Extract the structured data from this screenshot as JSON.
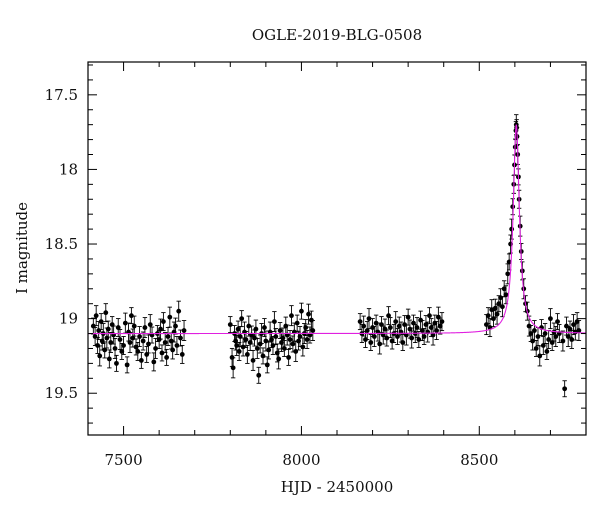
{
  "chart_data": {
    "type": "scatter",
    "title": "OGLE-2019-BLG-0508",
    "xlabel": "HJD - 2450000",
    "ylabel": "I magnitude",
    "xlim": [
      7400,
      8800
    ],
    "ylim": [
      19.78,
      17.28
    ],
    "y_inverted": true,
    "x_ticks": [
      7500,
      8000,
      8500
    ],
    "y_ticks": [
      17.5,
      18,
      18.5,
      19,
      19.5
    ],
    "x_tick_labels": [
      "7500",
      "8000",
      "8500"
    ],
    "y_tick_labels": [
      "17.5",
      "18",
      "18.5",
      "19",
      "19.5"
    ],
    "grid": false,
    "colors": {
      "points": "#000000",
      "model": "#e020e0",
      "axes": "#000000"
    },
    "model": {
      "name": "",
      "baseline_mag": 19.1,
      "peak_time": 8604,
      "peak_mag": 17.7,
      "timescale_days": 10.5
    },
    "series": [
      {
        "name": "",
        "points": [
          [
            7415,
            19.05
          ],
          [
            7420,
            19.12
          ],
          [
            7423,
            18.98
          ],
          [
            7427,
            19.18
          ],
          [
            7430,
            19.08
          ],
          [
            7433,
            19.25
          ],
          [
            7437,
            19.02
          ],
          [
            7440,
            19.15
          ],
          [
            7443,
            19.1
          ],
          [
            7447,
            19.21
          ],
          [
            7450,
            18.96
          ],
          [
            7453,
            19.13
          ],
          [
            7457,
            19.07
          ],
          [
            7460,
            19.27
          ],
          [
            7464,
            19.16
          ],
          [
            7468,
            19.04
          ],
          [
            7472,
            19.11
          ],
          [
            7476,
            19.2
          ],
          [
            7480,
            19.3
          ],
          [
            7485,
            19.06
          ],
          [
            7490,
            19.14
          ],
          [
            7495,
            19.22
          ],
          [
            7500,
            19.18
          ],
          [
            7505,
            19.03
          ],
          [
            7510,
            19.31
          ],
          [
            7514,
            19.09
          ],
          [
            7518,
            19.16
          ],
          [
            7522,
            18.98
          ],
          [
            7526,
            19.13
          ],
          [
            7530,
            19.05
          ],
          [
            7535,
            19.19
          ],
          [
            7540,
            19.22
          ],
          [
            7545,
            19.12
          ],
          [
            7550,
            19.28
          ],
          [
            7555,
            19.15
          ],
          [
            7560,
            19.06
          ],
          [
            7565,
            19.24
          ],
          [
            7570,
            19.17
          ],
          [
            7575,
            19.04
          ],
          [
            7580,
            19.11
          ],
          [
            7585,
            19.29
          ],
          [
            7590,
            19.2
          ],
          [
            7595,
            19.1
          ],
          [
            7600,
            19.14
          ],
          [
            7604,
            19.07
          ],
          [
            7608,
            19.23
          ],
          [
            7612,
            19.02
          ],
          [
            7617,
            19.16
          ],
          [
            7621,
            19.26
          ],
          [
            7625,
            19.12
          ],
          [
            7630,
            18.99
          ],
          [
            7634,
            19.15
          ],
          [
            7638,
            19.21
          ],
          [
            7642,
            19.09
          ],
          [
            7646,
            19.05
          ],
          [
            7650,
            19.18
          ],
          [
            7655,
            18.95
          ],
          [
            7660,
            19.13
          ],
          [
            7665,
            19.24
          ],
          [
            7670,
            19.08
          ],
          [
            7800,
            19.04
          ],
          [
            7805,
            19.26
          ],
          [
            7808,
            19.33
          ],
          [
            7812,
            19.1
          ],
          [
            7815,
            19.15
          ],
          [
            7818,
            19.18
          ],
          [
            7822,
            19.07
          ],
          [
            7825,
            19.22
          ],
          [
            7828,
            19.12
          ],
          [
            7832,
            19.0
          ],
          [
            7836,
            19.19
          ],
          [
            7840,
            19.09
          ],
          [
            7844,
            19.14
          ],
          [
            7848,
            19.24
          ],
          [
            7852,
            19.05
          ],
          [
            7856,
            19.16
          ],
          [
            7860,
            19.11
          ],
          [
            7864,
            19.28
          ],
          [
            7868,
            19.13
          ],
          [
            7872,
            19.07
          ],
          [
            7876,
            19.2
          ],
          [
            7880,
            19.38
          ],
          [
            7884,
            19.17
          ],
          [
            7888,
            19.1
          ],
          [
            7892,
            19.25
          ],
          [
            7896,
            19.06
          ],
          [
            7900,
            19.15
          ],
          [
            7904,
            19.31
          ],
          [
            7908,
            19.21
          ],
          [
            7912,
            19.09
          ],
          [
            7916,
            19.14
          ],
          [
            7920,
            19.18
          ],
          [
            7924,
            19.02
          ],
          [
            7928,
            19.12
          ],
          [
            7932,
            19.23
          ],
          [
            7936,
            19.27
          ],
          [
            7940,
            19.08
          ],
          [
            7944,
            19.16
          ],
          [
            7948,
            19.13
          ],
          [
            7952,
            19.2
          ],
          [
            7956,
            19.05
          ],
          [
            7960,
            19.11
          ],
          [
            7964,
            19.26
          ],
          [
            7968,
            19.14
          ],
          [
            7972,
            18.98
          ],
          [
            7976,
            19.17
          ],
          [
            7980,
            19.09
          ],
          [
            7984,
            19.22
          ],
          [
            7988,
            19.03
          ],
          [
            7992,
            19.15
          ],
          [
            7996,
            19.12
          ],
          [
            8000,
            18.95
          ],
          [
            8004,
            19.19
          ],
          [
            8008,
            19.1
          ],
          [
            8012,
            19.06
          ],
          [
            8016,
            19.14
          ],
          [
            8020,
            18.97
          ],
          [
            8024,
            19.11
          ],
          [
            8028,
            19.01
          ],
          [
            8032,
            19.08
          ],
          [
            8165,
            19.02
          ],
          [
            8170,
            19.1
          ],
          [
            8175,
            19.05
          ],
          [
            8180,
            19.14
          ],
          [
            8185,
            19.08
          ],
          [
            8190,
            19.0
          ],
          [
            8195,
            19.16
          ],
          [
            8200,
            19.06
          ],
          [
            8205,
            19.12
          ],
          [
            8210,
            19.03
          ],
          [
            8215,
            19.09
          ],
          [
            8220,
            19.17
          ],
          [
            8225,
            19.04
          ],
          [
            8230,
            19.11
          ],
          [
            8235,
            19.07
          ],
          [
            8240,
            19.13
          ],
          [
            8245,
            18.98
          ],
          [
            8250,
            19.06
          ],
          [
            8255,
            19.15
          ],
          [
            8260,
            19.1
          ],
          [
            8265,
            19.02
          ],
          [
            8270,
            19.12
          ],
          [
            8275,
            19.05
          ],
          [
            8280,
            19.09
          ],
          [
            8285,
            19.16
          ],
          [
            8290,
            19.04
          ],
          [
            8295,
            19.11
          ],
          [
            8300,
            18.99
          ],
          [
            8305,
            19.07
          ],
          [
            8310,
            19.13
          ],
          [
            8315,
            19.03
          ],
          [
            8320,
            19.1
          ],
          [
            8325,
            19.06
          ],
          [
            8330,
            19.14
          ],
          [
            8335,
            19.01
          ],
          [
            8340,
            19.08
          ],
          [
            8345,
            19.12
          ],
          [
            8350,
            19.04
          ],
          [
            8355,
            19.09
          ],
          [
            8360,
            18.98
          ],
          [
            8365,
            19.06
          ],
          [
            8370,
            19.11
          ],
          [
            8375,
            19.03
          ],
          [
            8380,
            19.08
          ],
          [
            8385,
            18.99
          ],
          [
            8390,
            19.05
          ],
          [
            8395,
            19.02
          ],
          [
            8520,
            19.04
          ],
          [
            8525,
            18.98
          ],
          [
            8530,
            19.06
          ],
          [
            8535,
            18.94
          ],
          [
            8540,
            19.0
          ],
          [
            8545,
            18.93
          ],
          [
            8550,
            18.97
          ],
          [
            8555,
            18.9
          ],
          [
            8560,
            18.86
          ],
          [
            8565,
            18.92
          ],
          [
            8570,
            18.8
          ],
          [
            8575,
            18.84
          ],
          [
            8580,
            18.7
          ],
          [
            8584,
            18.62
          ],
          [
            8588,
            18.5
          ],
          [
            8591,
            18.4
          ],
          [
            8594,
            18.25
          ],
          [
            8597,
            18.1
          ],
          [
            8599,
            17.97
          ],
          [
            8601,
            17.85
          ],
          [
            8603,
            17.74
          ],
          [
            8604,
            17.7
          ],
          [
            8605,
            17.72
          ],
          [
            8606,
            17.78
          ],
          [
            8608,
            17.9
          ],
          [
            8610,
            18.05
          ],
          [
            8612,
            18.2
          ],
          [
            8615,
            18.38
          ],
          [
            8618,
            18.55
          ],
          [
            8621,
            18.68
          ],
          [
            8625,
            18.8
          ],
          [
            8630,
            18.9
          ],
          [
            8635,
            18.95
          ],
          [
            8640,
            19.05
          ],
          [
            8645,
            19.1
          ],
          [
            8650,
            19.15
          ],
          [
            8655,
            19.08
          ],
          [
            8660,
            19.2
          ],
          [
            8665,
            19.12
          ],
          [
            8670,
            19.25
          ],
          [
            8675,
            19.06
          ],
          [
            8680,
            19.18
          ],
          [
            8685,
            19.1
          ],
          [
            8690,
            19.22
          ],
          [
            8695,
            19.14
          ],
          [
            8700,
            19.0
          ],
          [
            8705,
            19.16
          ],
          [
            8710,
            19.09
          ],
          [
            8715,
            19.12
          ],
          [
            8720,
            19.02
          ],
          [
            8725,
            19.1
          ],
          [
            8735,
            19.15
          ],
          [
            8740,
            19.47
          ],
          [
            8745,
            19.05
          ],
          [
            8750,
            19.12
          ],
          [
            8755,
            19.07
          ],
          [
            8760,
            19.14
          ],
          [
            8765,
            19.04
          ],
          [
            8770,
            19.09
          ],
          [
            8775,
            19.02
          ],
          [
            8780,
            19.08
          ]
        ]
      }
    ]
  }
}
